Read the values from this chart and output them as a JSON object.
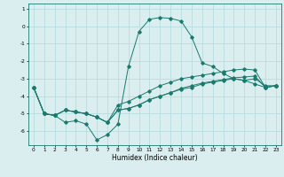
{
  "xlabel": "Humidex (Indice chaleur)",
  "x": [
    0,
    1,
    2,
    3,
    4,
    5,
    6,
    7,
    8,
    9,
    10,
    11,
    12,
    13,
    14,
    15,
    16,
    17,
    18,
    19,
    20,
    21,
    22,
    23
  ],
  "line1": [
    -3.5,
    -5.0,
    -5.1,
    -5.5,
    -5.4,
    -5.6,
    -6.5,
    -6.2,
    -5.6,
    -2.3,
    -0.3,
    0.4,
    0.5,
    0.45,
    0.3,
    -0.6,
    -2.1,
    -2.3,
    -2.7,
    -3.0,
    -3.1,
    -3.3,
    -3.5,
    -3.4
  ],
  "line2": [
    -3.5,
    -5.0,
    -5.1,
    -4.8,
    -4.9,
    -5.0,
    -5.2,
    -5.5,
    -4.5,
    -4.3,
    -4.0,
    -3.7,
    -3.4,
    -3.2,
    -3.0,
    -2.9,
    -2.8,
    -2.7,
    -2.6,
    -2.5,
    -2.45,
    -2.5,
    -3.5,
    -3.4
  ],
  "line3": [
    -3.5,
    -5.0,
    -5.1,
    -4.8,
    -4.9,
    -5.0,
    -5.2,
    -5.5,
    -4.8,
    -4.7,
    -4.5,
    -4.2,
    -4.0,
    -3.8,
    -3.55,
    -3.4,
    -3.25,
    -3.15,
    -3.05,
    -2.95,
    -2.9,
    -2.85,
    -3.5,
    -3.4
  ],
  "line4": [
    -3.5,
    -5.0,
    -5.1,
    -4.8,
    -4.9,
    -5.0,
    -5.2,
    -5.5,
    -4.8,
    -4.7,
    -4.5,
    -4.2,
    -4.0,
    -3.8,
    -3.6,
    -3.5,
    -3.3,
    -3.2,
    -3.1,
    -3.0,
    -3.1,
    -3.0,
    -3.4,
    -3.4
  ],
  "line_color": "#1a7a6e",
  "marker": "D",
  "markersize": 1.8,
  "linewidth": 0.7,
  "bg_color": "#daeef0",
  "grid_color": "#b8dde0",
  "ylim": [
    -6.8,
    1.3
  ],
  "yticks": [
    1,
    0,
    -1,
    -2,
    -3,
    -4,
    -5,
    -6
  ],
  "xlim": [
    -0.5,
    23.5
  ],
  "xticks": [
    0,
    1,
    2,
    3,
    4,
    5,
    6,
    7,
    8,
    9,
    10,
    11,
    12,
    13,
    14,
    15,
    16,
    17,
    18,
    19,
    20,
    21,
    22,
    23
  ],
  "tick_fontsize": 4.2,
  "xlabel_fontsize": 5.5
}
